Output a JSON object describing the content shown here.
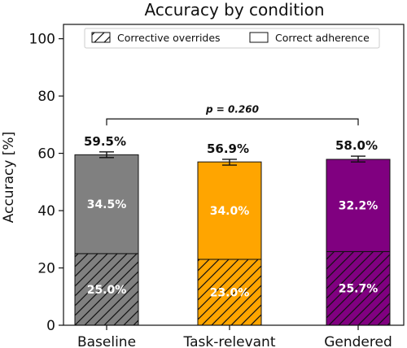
{
  "chart_data": {
    "type": "bar",
    "stacked": true,
    "title": "Accuracy by condition",
    "xlabel": "",
    "ylabel": "Accuracy [%]",
    "ylim": [
      0,
      105
    ],
    "yticks": [
      0,
      20,
      40,
      60,
      80,
      100
    ],
    "categories": [
      "Baseline",
      "Task-relevant",
      "Gendered"
    ],
    "bar_colors": [
      "#808080",
      "#ffa500",
      "#800080"
    ],
    "series": [
      {
        "name": "Corrective overrides",
        "pattern": "hatch",
        "values": [
          25.0,
          23.0,
          25.7
        ],
        "labels": [
          "25.0%",
          "23.0%",
          "25.7%"
        ]
      },
      {
        "name": "Correct adherence",
        "pattern": "solid",
        "values": [
          34.5,
          34.0,
          32.2
        ],
        "labels": [
          "34.5%",
          "34.0%",
          "32.2%"
        ]
      }
    ],
    "totals": [
      59.5,
      56.9,
      58.0
    ],
    "total_labels": [
      "59.5%",
      "56.9%",
      "58.0%"
    ],
    "error": [
      1.0,
      1.0,
      1.0
    ],
    "legend_position": "top-center",
    "significance": {
      "label": "p = 0.260",
      "from": "Baseline",
      "to": "Gendered",
      "y": 72
    },
    "grid": false
  }
}
